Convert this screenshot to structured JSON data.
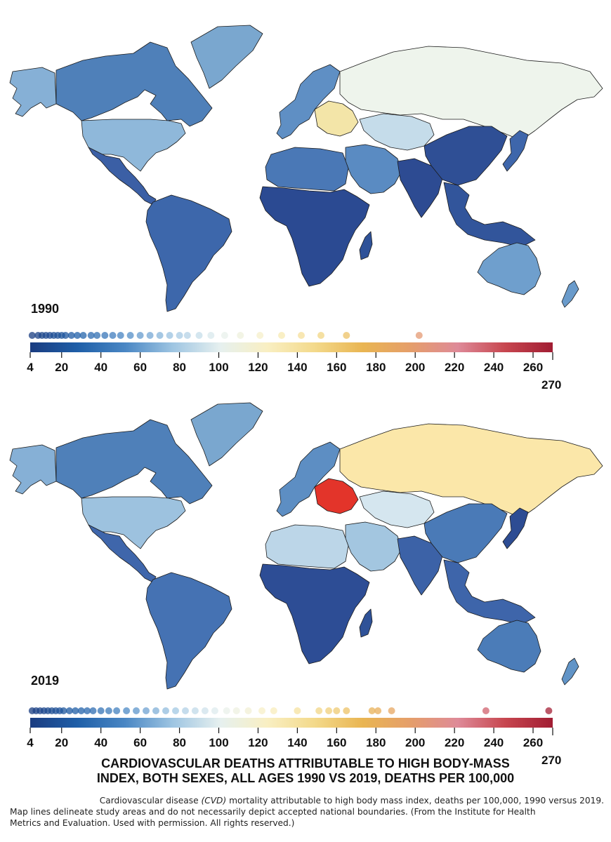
{
  "maps": [
    {
      "year": "1990",
      "fills": {
        "north_america": "#4f80b9",
        "greenland": "#7aa7cf",
        "alaska": "#86b0d6",
        "usa": "#8fb8da",
        "mexico_central": "#3b5fa5",
        "south_america": "#3d67ab",
        "europe_west": "#5f8fc4",
        "europe_east": "#f3e5a8",
        "russia": "#eef4ec",
        "central_asia": "#c5dcea",
        "middle_east": "#5a8bc2",
        "north_africa": "#4a78b6",
        "africa": "#2b4a92",
        "south_asia": "#2d4b92",
        "china": "#2f4f95",
        "se_asia": "#32559b",
        "japan": "#3e66ab",
        "australia": "#6f9fcd",
        "nz": "#6a9bcb",
        "madagascar": "#2f5298"
      },
      "dots": [
        5,
        8,
        10,
        12,
        14,
        16,
        18,
        20,
        22,
        25,
        28,
        31,
        35,
        38,
        42,
        46,
        50,
        55,
        60,
        65,
        70,
        75,
        80,
        84,
        90,
        96,
        103,
        111,
        121,
        132,
        142,
        152,
        165,
        202
      ]
    },
    {
      "year": "2019",
      "fills": {
        "north_america": "#4f80b9",
        "greenland": "#7aa7cf",
        "alaska": "#86b0d6",
        "usa": "#9dc2df",
        "mexico_central": "#3f66ab",
        "south_america": "#4572b3",
        "europe_west": "#5d8ec3",
        "europe_east": "#e3342a",
        "russia": "#fbe7a9",
        "central_asia": "#d5e6ef",
        "middle_east": "#a3c6e0",
        "north_africa": "#bcd6e8",
        "africa": "#2d4d95",
        "south_asia": "#3c62a7",
        "china": "#4a7ab7",
        "se_asia": "#3e65aa",
        "japan": "#2d4c93",
        "australia": "#4b7cb8",
        "nz": "#6194c7",
        "madagascar": "#2f5298"
      },
      "dots": [
        5,
        7,
        9,
        11,
        13,
        15,
        17,
        19,
        21,
        24,
        27,
        30,
        33,
        36,
        40,
        44,
        48,
        53,
        58,
        63,
        68,
        73,
        78,
        83,
        88,
        93,
        98,
        104,
        109,
        115,
        122,
        128,
        140,
        151,
        156,
        160,
        165,
        178,
        181,
        188,
        236,
        268
      ]
    }
  ],
  "legend": {
    "scale_min": 4,
    "scale_max": 270,
    "ticks": [
      "4",
      "20",
      "40",
      "60",
      "80",
      "100",
      "120",
      "140",
      "160",
      "180",
      "200",
      "220",
      "240",
      "260"
    ],
    "end_label": "270",
    "gradient": [
      "#1a3c80",
      "#1f5fa8",
      "#4a87c4",
      "#9ec5e2",
      "#e6f0ef",
      "#f9efc2",
      "#f3d98a",
      "#e9b552",
      "#e59e6a",
      "#de8a98",
      "#c7464f",
      "#a11d33"
    ]
  },
  "title_line1": "CARDIOVASCULAR DEATHS ATTRIBUTABLE TO HIGH BODY-MASS",
  "title_line2": "INDEX, BOTH SEXES, ALL AGES 1990 VS 2019, DEATHS PER 100,000",
  "caption": {
    "part1": "Cardiovascular disease ",
    "part2": "(CVD)",
    "part3": " mortality attributable to high body mass index, deaths per 100,000, 1990 versus 2019.",
    "line2": "Map lines delineate study areas and do not necessarily depict accepted national boundaries. (From the Institute for Health",
    "line3": "Metrics and Evaluation. Used with permission. All rights reserved.)"
  }
}
